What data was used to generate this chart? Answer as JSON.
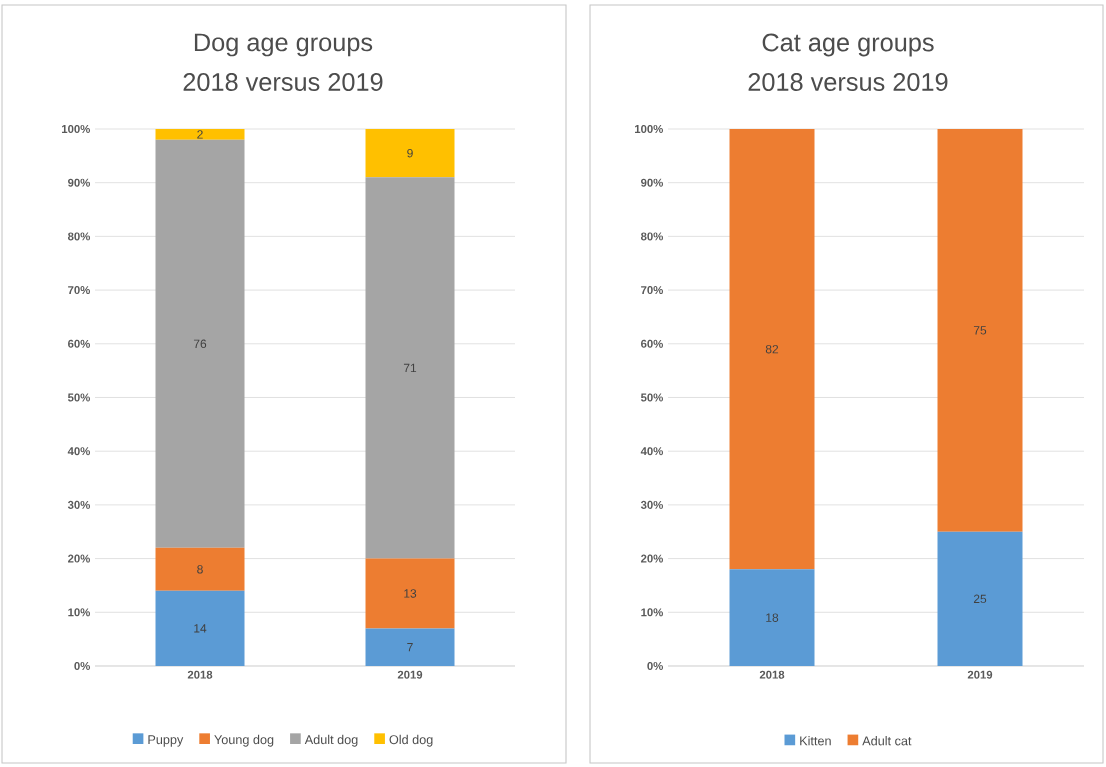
{
  "chart_data": [
    {
      "type": "bar",
      "title": "Dog age groups",
      "subtitle": "2018 versus 2019",
      "categories": [
        "2018",
        "2019"
      ],
      "stacked": true,
      "series": [
        {
          "name": "Puppy",
          "color": "#5b9bd5",
          "values": [
            14,
            7
          ]
        },
        {
          "name": "Young dog",
          "color": "#ed7d31",
          "values": [
            8,
            13
          ]
        },
        {
          "name": "Adult dog",
          "color": "#a5a5a5",
          "values": [
            76,
            71
          ]
        },
        {
          "name": "Old dog",
          "color": "#ffc000",
          "values": [
            2,
            9
          ]
        }
      ],
      "ylim": [
        0,
        100
      ],
      "yticks": [
        {
          "value": 0,
          "label": "0%"
        },
        {
          "value": 10,
          "label": "10%"
        },
        {
          "value": 20,
          "label": "20%"
        },
        {
          "value": 30,
          "label": "30%"
        },
        {
          "value": 40,
          "label": "40%"
        },
        {
          "value": 50,
          "label": "50%"
        },
        {
          "value": 60,
          "label": "60%"
        },
        {
          "value": 70,
          "label": "70%"
        },
        {
          "value": 80,
          "label": "80%"
        },
        {
          "value": 90,
          "label": "90%"
        },
        {
          "value": 100,
          "label": "100%"
        }
      ],
      "grid": "y",
      "legend": "bottom",
      "data_labels": true
    },
    {
      "type": "bar",
      "title": "Cat age groups",
      "subtitle": "2018 versus 2019",
      "categories": [
        "2018",
        "2019"
      ],
      "stacked": true,
      "series": [
        {
          "name": "Kitten",
          "color": "#5b9bd5",
          "values": [
            18,
            25
          ]
        },
        {
          "name": "Adult cat",
          "color": "#ed7d31",
          "values": [
            82,
            75
          ]
        }
      ],
      "ylim": [
        0,
        100
      ],
      "yticks": [
        {
          "value": 0,
          "label": "0%"
        },
        {
          "value": 10,
          "label": "10%"
        },
        {
          "value": 20,
          "label": "20%"
        },
        {
          "value": 30,
          "label": "30%"
        },
        {
          "value": 40,
          "label": "40%"
        },
        {
          "value": 50,
          "label": "50%"
        },
        {
          "value": 60,
          "label": "60%"
        },
        {
          "value": 70,
          "label": "70%"
        },
        {
          "value": 80,
          "label": "80%"
        },
        {
          "value": 90,
          "label": "90%"
        },
        {
          "value": 100,
          "label": "100%"
        }
      ],
      "grid": "y",
      "legend": "bottom",
      "data_labels": true
    }
  ]
}
